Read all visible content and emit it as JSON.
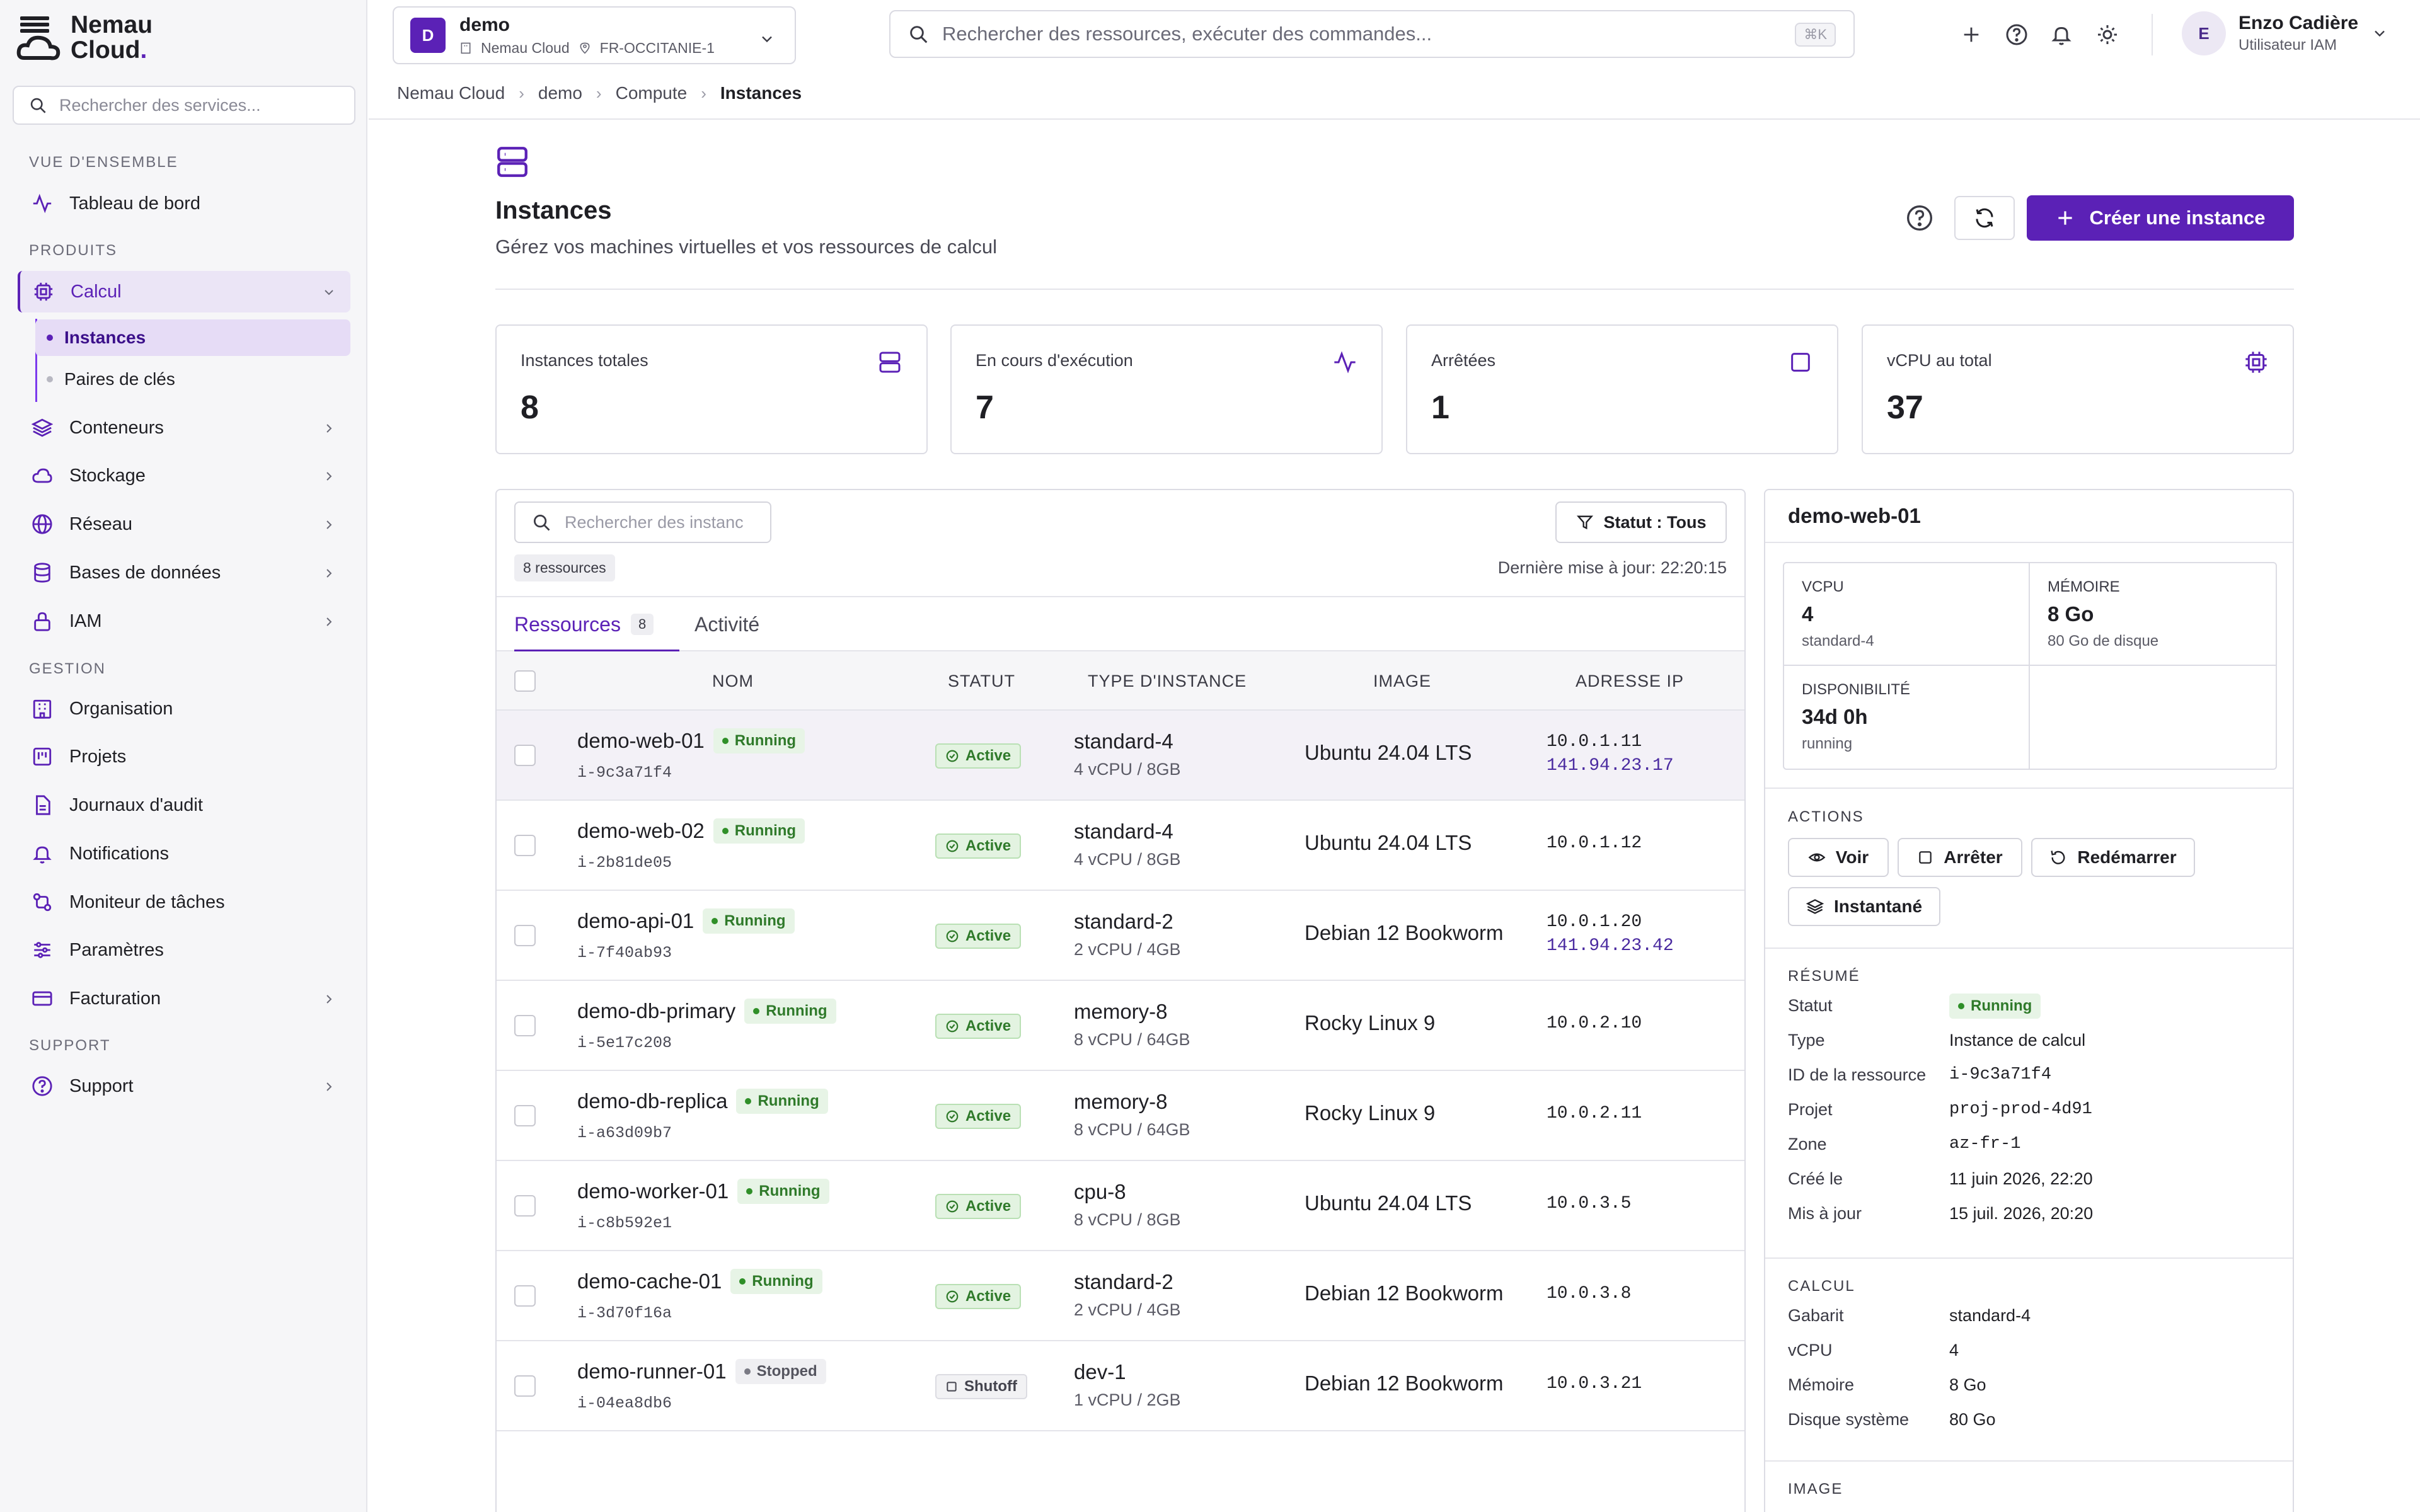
{
  "brand": {
    "line1": "Nemau",
    "line2": "Cloud",
    "dot": "."
  },
  "sidebar": {
    "search_placeholder": "Rechercher des services...",
    "sections": {
      "overview": "VUE D'ENSEMBLE",
      "products": "PRODUITS",
      "management": "GESTION",
      "support": "SUPPORT"
    },
    "dashboard": "Tableau de bord",
    "compute": "Calcul",
    "instances": "Instances",
    "keypairs": "Paires de clés",
    "containers": "Conteneurs",
    "storage": "Stockage",
    "network": "Réseau",
    "databases": "Bases de données",
    "iam": "IAM",
    "organisation": "Organisation",
    "projects": "Projets",
    "audit": "Journaux d'audit",
    "notifications": "Notifications",
    "tasks": "Moniteur de tâches",
    "settings": "Paramètres",
    "billing": "Facturation",
    "support_item": "Support"
  },
  "topbar": {
    "project_badge": "D",
    "project_name": "demo",
    "project_org": "Nemau Cloud",
    "project_region": "FR-OCCITANIE-1",
    "search_placeholder": "Rechercher des ressources, exécuter des commandes...",
    "shortcut": "⌘K",
    "user_initial": "E",
    "user_name": "Enzo Cadière",
    "user_role": "Utilisateur IAM"
  },
  "breadcrumb": [
    "Nemau Cloud",
    "demo",
    "Compute",
    "Instances"
  ],
  "page": {
    "title": "Instances",
    "subtitle": "Gérez vos machines virtuelles et vos ressources de calcul",
    "create_label": "Créer une instance"
  },
  "stats": [
    {
      "label": "Instances totales",
      "value": "8"
    },
    {
      "label": "En cours d'exécution",
      "value": "7"
    },
    {
      "label": "Arrêtées",
      "value": "1"
    },
    {
      "label": "vCPU au total",
      "value": "37"
    }
  ],
  "list": {
    "search_placeholder": "Rechercher des instanc",
    "filter_label": "Statut : Tous",
    "count_label": "8 ressources",
    "last_update": "Dernière mise à jour: 22:20:15",
    "tabs": [
      {
        "label": "Ressources",
        "count": "8"
      },
      {
        "label": "Activité"
      }
    ],
    "headers": [
      "NOM",
      "STATUT",
      "TYPE D'INSTANCE",
      "IMAGE",
      "ADRESSE IP"
    ],
    "rows": [
      {
        "name": "demo-web-01",
        "state": "Running",
        "id": "i-9c3a71f4",
        "status": "Active",
        "type": "standard-4",
        "spec": "4 vCPU / 8GB",
        "image": "Ubuntu 24.04 LTS",
        "ip": "10.0.1.11",
        "public_ip": "141.94.23.17"
      },
      {
        "name": "demo-web-02",
        "state": "Running",
        "id": "i-2b81de05",
        "status": "Active",
        "type": "standard-4",
        "spec": "4 vCPU / 8GB",
        "image": "Ubuntu 24.04 LTS",
        "ip": "10.0.1.12",
        "public_ip": ""
      },
      {
        "name": "demo-api-01",
        "state": "Running",
        "id": "i-7f40ab93",
        "status": "Active",
        "type": "standard-2",
        "spec": "2 vCPU / 4GB",
        "image": "Debian 12 Bookworm",
        "ip": "10.0.1.20",
        "public_ip": "141.94.23.42"
      },
      {
        "name": "demo-db-primary",
        "state": "Running",
        "id": "i-5e17c208",
        "status": "Active",
        "type": "memory-8",
        "spec": "8 vCPU / 64GB",
        "image": "Rocky Linux 9",
        "ip": "10.0.2.10",
        "public_ip": ""
      },
      {
        "name": "demo-db-replica",
        "state": "Running",
        "id": "i-a63d09b7",
        "status": "Active",
        "type": "memory-8",
        "spec": "8 vCPU / 64GB",
        "image": "Rocky Linux 9",
        "ip": "10.0.2.11",
        "public_ip": ""
      },
      {
        "name": "demo-worker-01",
        "state": "Running",
        "id": "i-c8b592e1",
        "status": "Active",
        "type": "cpu-8",
        "spec": "8 vCPU / 8GB",
        "image": "Ubuntu 24.04 LTS",
        "ip": "10.0.3.5",
        "public_ip": ""
      },
      {
        "name": "demo-cache-01",
        "state": "Running",
        "id": "i-3d70f16a",
        "status": "Active",
        "type": "standard-2",
        "spec": "2 vCPU / 4GB",
        "image": "Debian 12 Bookworm",
        "ip": "10.0.3.8",
        "public_ip": ""
      },
      {
        "name": "demo-runner-01",
        "state": "Stopped",
        "id": "i-04ea8db6",
        "status": "Shutoff",
        "type": "dev-1",
        "spec": "1 vCPU / 2GB",
        "image": "Debian 12 Bookworm",
        "ip": "10.0.3.21",
        "public_ip": ""
      }
    ]
  },
  "detail": {
    "title": "demo-web-01",
    "vcpu_label": "VCPU",
    "vcpu_value": "4",
    "vcpu_sub": "standard-4",
    "mem_label": "MÉMOIRE",
    "mem_value": "8 Go",
    "mem_sub": "80 Go de disque",
    "avail_label": "DISPONIBILITÉ",
    "avail_value": "34d 0h",
    "avail_sub": "running",
    "actions_label": "ACTIONS",
    "actions": {
      "view": "Voir",
      "stop": "Arrêter",
      "restart": "Redémarrer",
      "snapshot": "Instantané"
    },
    "summary_label": "RÉSUMÉ",
    "summary": [
      {
        "k": "Statut",
        "v": "Running"
      },
      {
        "k": "Type",
        "v": "Instance de calcul"
      },
      {
        "k": "ID de la ressource",
        "v": "i-9c3a71f4"
      },
      {
        "k": "Projet",
        "v": "proj-prod-4d91"
      },
      {
        "k": "Zone",
        "v": "az-fr-1"
      },
      {
        "k": "Créé le",
        "v": "11 juin 2026, 22:20"
      },
      {
        "k": "Mis à jour",
        "v": "15 juil. 2026, 20:20"
      }
    ],
    "compute_label": "CALCUL",
    "compute": [
      {
        "k": "Gabarit",
        "v": "standard-4"
      },
      {
        "k": "vCPU",
        "v": "4"
      },
      {
        "k": "Mémoire",
        "v": "8 Go"
      },
      {
        "k": "Disque système",
        "v": "80 Go"
      }
    ],
    "image_label": "IMAGE"
  },
  "colors": {
    "accent": "#5b21b6",
    "success": "#2f7a2a"
  }
}
